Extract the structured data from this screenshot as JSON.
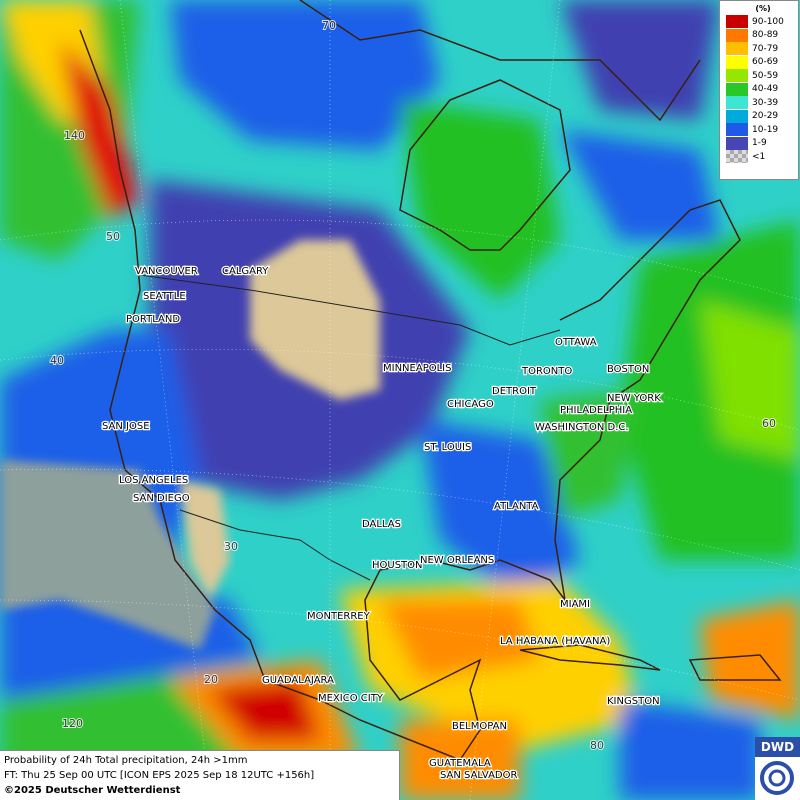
{
  "grid_labels": [
    "70",
    "140",
    "50",
    "40",
    "60",
    "30",
    "20",
    "120",
    "80"
  ],
  "cities": [
    "VANCOUVER",
    "CALGARY",
    "SEATTLE",
    "PORTLAND",
    "MINNEAPOLIS",
    "OTTAWA",
    "TORONTO",
    "DETROIT",
    "BOSTON",
    "NEW YORK",
    "PHILADELPHIA",
    "WASHINGTON D.C.",
    "CHICAGO",
    "SAN JOSE",
    "ST. LOUIS",
    "LOS ANGELES",
    "SAN DIEGO",
    "ATLANTA",
    "DALLAS",
    "HOUSTON",
    "NEW ORLEANS",
    "MIAMI",
    "MONTERREY",
    "LA HABANA (HAVANA)",
    "GUADALAJARA",
    "MEXICO CITY",
    "KINGSTON",
    "BELMOPAN",
    "GUATEMALA",
    "SAN SALVADOR"
  ],
  "legend": {
    "title": "(%)",
    "items": [
      {
        "label": "90-100",
        "color": "#c80000"
      },
      {
        "label": "80-89",
        "color": "#ff7800"
      },
      {
        "label": "70-79",
        "color": "#ffbe00"
      },
      {
        "label": "60-69",
        "color": "#ffff00"
      },
      {
        "label": "50-59",
        "color": "#96e600"
      },
      {
        "label": "40-49",
        "color": "#28c828"
      },
      {
        "label": "30-39",
        "color": "#3ce6d2"
      },
      {
        "label": "20-29",
        "color": "#00aadc"
      },
      {
        "label": "10-19",
        "color": "#1e5ae6"
      },
      {
        "label": "1-9",
        "color": "#4646b4"
      },
      {
        "label": "<1",
        "color": "checker"
      }
    ]
  },
  "caption": [
    "Probability of 24h Total precipitation, 24h >1mm",
    "FT: Thu 25 Sep 00 UTC [ICON EPS 2025 Sep 18 12UTC +156h]",
    "©2025 Deutscher Wetterdienst"
  ],
  "logo": "DWD"
}
